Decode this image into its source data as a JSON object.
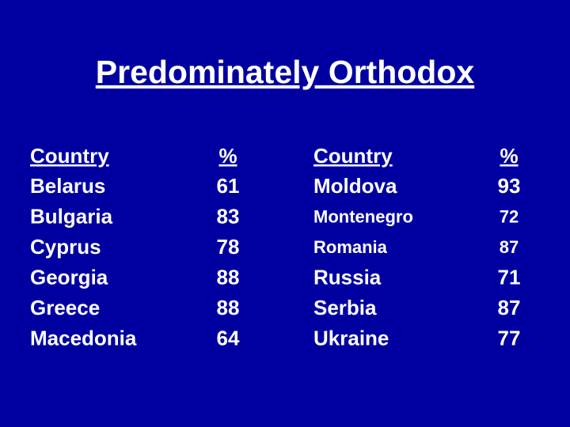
{
  "title": "Predominately Orthodox",
  "tables": [
    {
      "header": [
        "Country",
        "%"
      ],
      "rows": [
        [
          "Belarus",
          61
        ],
        [
          "Bulgaria",
          83
        ],
        [
          "Cyprus",
          78
        ],
        [
          "Georgia",
          88
        ],
        [
          "Greece",
          88
        ],
        [
          "Macedonia",
          64
        ]
      ]
    },
    {
      "header": [
        "Country",
        "%"
      ],
      "rows": [
        [
          "Moldova",
          93
        ],
        [
          "Montenegro",
          72
        ],
        [
          "Romania",
          87
        ],
        [
          "Russia",
          71
        ],
        [
          "Serbia",
          87
        ],
        [
          "Ukraine",
          77
        ]
      ]
    }
  ]
}
